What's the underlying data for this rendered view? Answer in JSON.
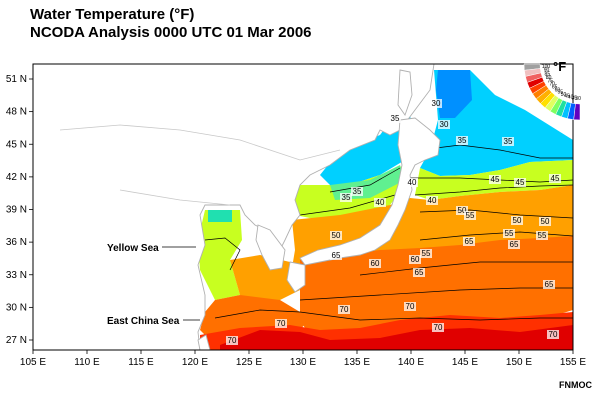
{
  "title": "Water Temperature (°F)",
  "subtitle": "NCODA Analysis 0000 UTC 01 Mar 2006",
  "credit": "FNMOC",
  "legend": {
    "unit": "°F",
    "values": [
      "100",
      "90",
      "85",
      "80",
      "75",
      "70",
      "65",
      "60",
      "55",
      "50",
      "45",
      "40",
      "35",
      "30"
    ],
    "colors": [
      "#a0a0a0",
      "#f0c0c0",
      "#f06060",
      "#e00000",
      "#ff4000",
      "#ff8000",
      "#ffb000",
      "#ffe000",
      "#e0ff60",
      "#80ff60",
      "#20e0a0",
      "#00c0ff",
      "#0060ff",
      "#6000c0"
    ]
  },
  "axes": {
    "lon_labels": [
      "105 E",
      "110 E",
      "115 E",
      "120 E",
      "125 E",
      "130 E",
      "135 E",
      "140 E",
      "145 E",
      "150 E",
      "155 E"
    ],
    "lat_labels": [
      "51 N",
      "48 N",
      "45 N",
      "42 N",
      "39 N",
      "36 N",
      "33 N",
      "30 N",
      "27 N"
    ]
  },
  "places": {
    "yellow_sea": "Yellow Sea",
    "east_china_sea": "East China Sea"
  },
  "contour_labels": [
    "30",
    "30",
    "35",
    "35",
    "35",
    "35",
    "35",
    "40",
    "40",
    "40",
    "45",
    "45",
    "45",
    "50",
    "50",
    "50",
    "50",
    "55",
    "55",
    "55",
    "55",
    "60",
    "60",
    "65",
    "65",
    "65",
    "65",
    "65",
    "70",
    "70",
    "70",
    "70",
    "70",
    "70"
  ]
}
